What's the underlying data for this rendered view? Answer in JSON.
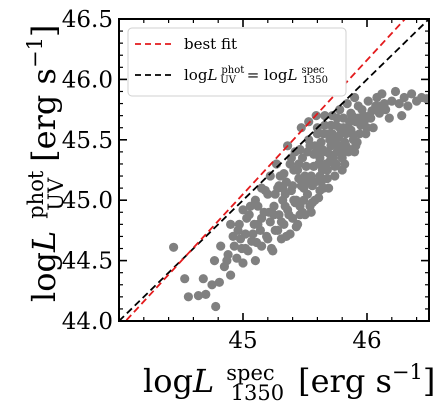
{
  "chart_data": {
    "type": "scatter",
    "title": "",
    "xlabel": {
      "prefix": "log",
      "var": "L",
      "sup": "spec",
      "sub": "1350",
      "unit": "[erg s",
      "unit_exp": "−1",
      "unit_close": "]"
    },
    "ylabel": {
      "prefix": "log",
      "var": "L",
      "sup": "phot",
      "sub": "UV",
      "unit": "[erg s",
      "unit_exp": "−1",
      "unit_close": "]"
    },
    "xlim": [
      44.0,
      46.5
    ],
    "ylim": [
      44.0,
      46.5
    ],
    "xticks": [
      45,
      46
    ],
    "xtick_labels": [
      "45",
      "46"
    ],
    "yticks": [
      44.0,
      44.5,
      45.0,
      45.5,
      46.0,
      46.5
    ],
    "ytick_labels": [
      "44.0",
      "44.5",
      "45.0",
      "45.5",
      "46.0",
      "46.5"
    ],
    "grid": false,
    "legend_position": "top-left",
    "legend": [
      {
        "label": "best fit"
      },
      {
        "label_prefix": "log",
        "label_var": "L",
        "label_sup": "phot",
        "label_sub": "UV",
        "label_eq": " = log",
        "label_var2": "L",
        "label_sup2": "spec",
        "label_sub2": "1350"
      }
    ],
    "points_color": "#808080",
    "best_fit": {
      "slope": 1.11,
      "intercept": -4.9,
      "color": "#e31a1c",
      "style": "dashed"
    },
    "one_to_one": {
      "slope": 1.0,
      "intercept": 0.0,
      "color": "#000000",
      "style": "dashed"
    },
    "points": [
      [
        44.44,
        44.61
      ],
      [
        44.53,
        44.35
      ],
      [
        44.56,
        44.2
      ],
      [
        44.64,
        44.21
      ],
      [
        44.68,
        44.35
      ],
      [
        44.7,
        44.22
      ],
      [
        44.75,
        44.3
      ],
      [
        44.78,
        44.12
      ],
      [
        44.81,
        44.32
      ],
      [
        44.77,
        44.5
      ],
      [
        44.82,
        44.62
      ],
      [
        44.85,
        44.45
      ],
      [
        44.88,
        44.55
      ],
      [
        44.9,
        44.38
      ],
      [
        44.92,
        44.7
      ],
      [
        44.95,
        44.52
      ],
      [
        44.97,
        44.8
      ],
      [
        44.99,
        44.6
      ],
      [
        45.0,
        44.48
      ],
      [
        45.02,
        44.72
      ],
      [
        45.04,
        44.58
      ],
      [
        45.05,
        44.88
      ],
      [
        45.07,
        44.66
      ],
      [
        45.09,
        44.8
      ],
      [
        45.1,
        44.5
      ],
      [
        45.12,
        44.95
      ],
      [
        45.14,
        44.75
      ],
      [
        45.15,
        44.62
      ],
      [
        45.17,
        44.9
      ],
      [
        45.19,
        44.7
      ],
      [
        45.2,
        45.05
      ],
      [
        45.22,
        44.82
      ],
      [
        45.23,
        44.6
      ],
      [
        45.25,
        44.95
      ],
      [
        45.26,
        44.75
      ],
      [
        45.28,
        45.1
      ],
      [
        45.29,
        44.88
      ],
      [
        45.31,
        44.68
      ],
      [
        45.32,
        45.0
      ],
      [
        45.33,
        44.8
      ],
      [
        45.35,
        45.15
      ],
      [
        45.36,
        44.92
      ],
      [
        45.38,
        44.72
      ],
      [
        45.39,
        45.08
      ],
      [
        45.4,
        44.85
      ],
      [
        45.41,
        45.25
      ],
      [
        45.43,
        45.0
      ],
      [
        45.44,
        44.8
      ],
      [
        45.45,
        45.18
      ],
      [
        45.46,
        44.95
      ],
      [
        45.48,
        45.35
      ],
      [
        45.49,
        45.1
      ],
      [
        45.5,
        44.88
      ],
      [
        45.51,
        45.28
      ],
      [
        45.52,
        45.05
      ],
      [
        45.54,
        45.45
      ],
      [
        45.55,
        45.2
      ],
      [
        45.56,
        44.98
      ],
      [
        45.57,
        45.38
      ],
      [
        45.58,
        45.15
      ],
      [
        45.6,
        45.55
      ],
      [
        45.61,
        45.3
      ],
      [
        45.62,
        45.08
      ],
      [
        45.63,
        45.48
      ],
      [
        45.64,
        45.25
      ],
      [
        45.66,
        45.62
      ],
      [
        45.67,
        45.4
      ],
      [
        45.68,
        45.18
      ],
      [
        45.69,
        45.55
      ],
      [
        45.7,
        45.32
      ],
      [
        45.72,
        45.7
      ],
      [
        45.73,
        45.48
      ],
      [
        45.74,
        45.28
      ],
      [
        45.75,
        45.62
      ],
      [
        45.76,
        45.4
      ],
      [
        45.78,
        45.75
      ],
      [
        45.79,
        45.55
      ],
      [
        45.8,
        45.35
      ],
      [
        45.81,
        45.68
      ],
      [
        45.82,
        45.48
      ],
      [
        45.84,
        45.8
      ],
      [
        45.85,
        45.6
      ],
      [
        45.86,
        45.42
      ],
      [
        45.87,
        45.72
      ],
      [
        45.88,
        45.55
      ],
      [
        45.9,
        45.85
      ],
      [
        45.91,
        45.65
      ],
      [
        45.92,
        45.48
      ],
      [
        45.93,
        45.78
      ],
      [
        45.95,
        45.62
      ],
      [
        45.97,
        45.7
      ],
      [
        45.99,
        45.55
      ],
      [
        46.01,
        45.82
      ],
      [
        46.03,
        45.68
      ],
      [
        46.05,
        45.6
      ],
      [
        46.07,
        45.78
      ],
      [
        46.1,
        45.72
      ],
      [
        46.12,
        45.88
      ],
      [
        46.15,
        45.75
      ],
      [
        46.18,
        45.68
      ],
      [
        46.2,
        45.82
      ],
      [
        46.23,
        45.9
      ],
      [
        46.26,
        45.8
      ],
      [
        46.28,
        45.7
      ],
      [
        46.3,
        45.85
      ],
      [
        46.33,
        45.78
      ],
      [
        46.36,
        45.88
      ],
      [
        46.4,
        45.82
      ],
      [
        46.44,
        45.85
      ],
      [
        46.48,
        45.84
      ],
      [
        45.0,
        44.92
      ],
      [
        45.1,
        45.0
      ],
      [
        45.15,
        44.85
      ],
      [
        45.2,
        44.68
      ],
      [
        45.25,
        44.88
      ],
      [
        45.3,
        45.2
      ],
      [
        45.34,
        44.95
      ],
      [
        45.4,
        45.12
      ],
      [
        45.45,
        45.3
      ],
      [
        45.48,
        44.9
      ],
      [
        45.52,
        45.4
      ],
      [
        45.58,
        45.0
      ],
      [
        45.62,
        45.35
      ],
      [
        45.65,
        45.1
      ],
      [
        45.7,
        45.5
      ],
      [
        45.74,
        45.2
      ],
      [
        45.78,
        45.6
      ],
      [
        45.82,
        45.3
      ],
      [
        45.86,
        45.65
      ],
      [
        45.9,
        45.4
      ],
      [
        45.55,
        44.9
      ],
      [
        45.6,
        45.6
      ],
      [
        45.38,
        45.3
      ],
      [
        45.28,
        44.75
      ],
      [
        45.18,
        45.08
      ],
      [
        45.08,
        44.72
      ],
      [
        44.98,
        44.68
      ],
      [
        44.9,
        44.8
      ],
      [
        44.87,
        44.5
      ],
      [
        44.93,
        44.62
      ],
      [
        45.42,
        45.4
      ],
      [
        45.47,
        45.6
      ],
      [
        45.53,
        45.5
      ],
      [
        45.66,
        45.7
      ],
      [
        45.71,
        45.45
      ],
      [
        45.77,
        45.52
      ],
      [
        45.83,
        45.45
      ],
      [
        45.89,
        45.5
      ],
      [
        45.94,
        45.55
      ],
      [
        46.0,
        45.6
      ],
      [
        45.36,
        45.45
      ],
      [
        45.44,
        45.25
      ],
      [
        45.5,
        45.2
      ],
      [
        45.57,
        45.28
      ],
      [
        45.63,
        45.15
      ],
      [
        45.69,
        45.1
      ],
      [
        45.75,
        45.3
      ],
      [
        45.8,
        45.25
      ],
      [
        45.85,
        45.4
      ],
      [
        45.91,
        45.45
      ],
      [
        45.24,
        44.58
      ],
      [
        45.31,
        44.82
      ],
      [
        45.37,
        44.88
      ],
      [
        45.43,
        44.78
      ],
      [
        45.49,
        45.0
      ],
      [
        45.56,
        45.12
      ],
      [
        45.62,
        45.2
      ],
      [
        45.68,
        45.25
      ],
      [
        45.73,
        45.35
      ],
      [
        45.79,
        45.4
      ],
      [
        45.22,
        45.2
      ],
      [
        45.27,
        45.3
      ],
      [
        45.33,
        45.22
      ],
      [
        45.39,
        45.35
      ],
      [
        45.46,
        45.42
      ],
      [
        45.53,
        45.65
      ],
      [
        45.59,
        45.7
      ],
      [
        45.65,
        45.55
      ],
      [
        45.71,
        45.62
      ],
      [
        45.76,
        45.68
      ],
      [
        45.15,
        45.1
      ],
      [
        45.12,
        44.8
      ],
      [
        45.06,
        44.95
      ],
      [
        45.03,
        44.85
      ],
      [
        44.96,
        44.75
      ],
      [
        45.26,
        45.05
      ],
      [
        45.32,
        45.1
      ],
      [
        45.41,
        45.0
      ],
      [
        45.47,
        45.12
      ],
      [
        45.59,
        45.4
      ],
      [
        45.64,
        45.42
      ],
      [
        45.7,
        45.38
      ],
      [
        45.77,
        45.45
      ],
      [
        45.83,
        45.55
      ],
      [
        45.88,
        45.7
      ],
      [
        45.92,
        45.65
      ],
      [
        45.96,
        45.75
      ],
      [
        46.02,
        45.7
      ],
      [
        46.08,
        45.85
      ],
      [
        46.14,
        45.8
      ],
      [
        45.51,
        45.15
      ],
      [
        45.58,
        45.45
      ],
      [
        45.67,
        45.3
      ],
      [
        45.72,
        45.55
      ],
      [
        45.81,
        45.6
      ],
      [
        45.87,
        45.58
      ],
      [
        45.93,
        45.68
      ],
      [
        45.98,
        45.66
      ],
      [
        46.04,
        45.74
      ],
      [
        46.11,
        45.78
      ],
      [
        45.34,
        45.05
      ],
      [
        45.42,
        44.98
      ],
      [
        45.29,
        45.12
      ],
      [
        45.21,
        44.9
      ],
      [
        45.11,
        44.65
      ],
      [
        45.02,
        44.6
      ],
      [
        45.35,
        44.7
      ],
      [
        45.46,
        44.88
      ],
      [
        45.54,
        44.95
      ],
      [
        45.61,
        45.02
      ]
    ]
  }
}
